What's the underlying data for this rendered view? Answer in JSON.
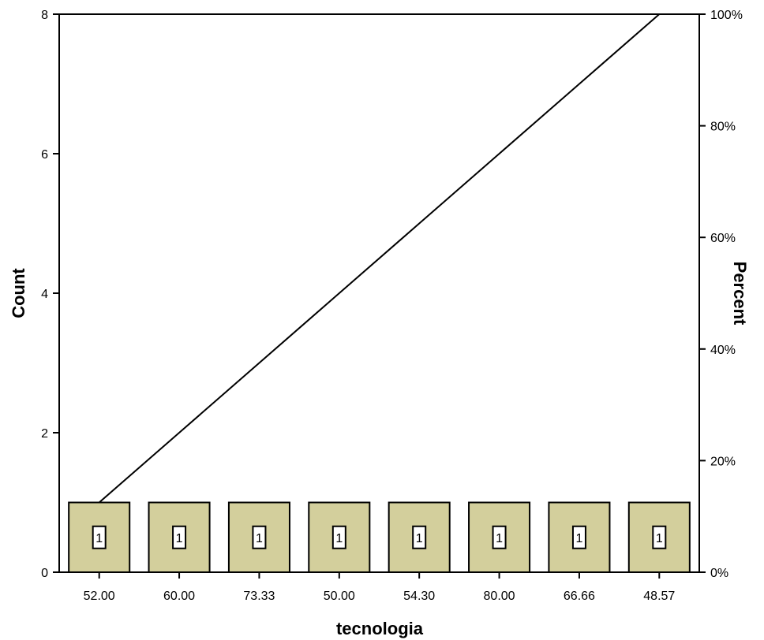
{
  "chart_data": {
    "type": "bar",
    "title": "",
    "xlabel": "tecnologia",
    "ylabel": "Count",
    "y2label": "Percent",
    "categories": [
      "52.00",
      "60.00",
      "73.33",
      "50.00",
      "54.30",
      "80.00",
      "66.66",
      "48.57"
    ],
    "series": [
      {
        "type": "bar",
        "values": [
          1,
          1,
          1,
          1,
          1,
          1,
          1,
          1
        ]
      },
      {
        "type": "line",
        "values": [
          12.5,
          25,
          37.5,
          50,
          62.5,
          75,
          87.5,
          100
        ]
      }
    ],
    "data_labels": [
      "1",
      "1",
      "1",
      "1",
      "1",
      "1",
      "1",
      "1"
    ],
    "ylim": [
      0,
      8
    ],
    "y2lim": [
      0,
      100
    ],
    "yticks": [
      "0",
      "2",
      "4",
      "6",
      "8"
    ],
    "y2ticks": [
      "0%",
      "20%",
      "40%",
      "60%",
      "80%",
      "100%"
    ],
    "grid": false,
    "colors": {
      "bar_fill": "#d3cf9c",
      "bar_stroke": "#000000",
      "line": "#000000",
      "label_box": "#ffffff"
    }
  }
}
